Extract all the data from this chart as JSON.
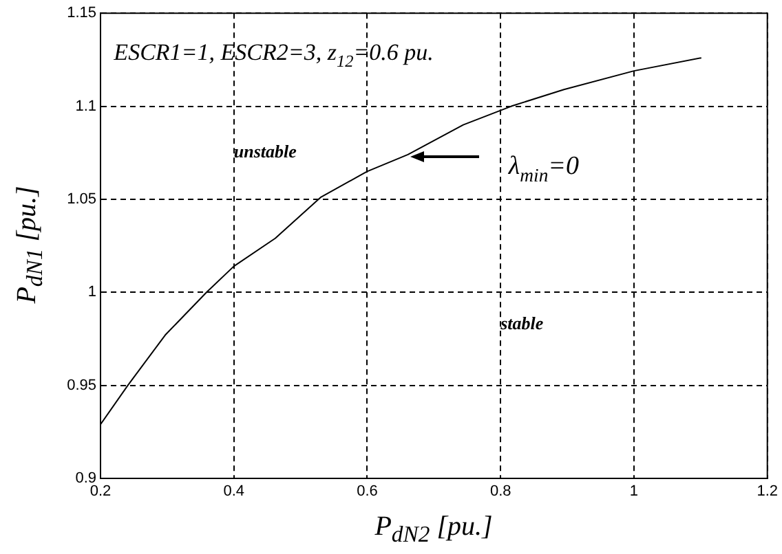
{
  "chart_data": {
    "type": "line",
    "xlabel": "P$_{dN2}$ [pu.]",
    "ylabel": "P$_{dN1}$ [pu.]",
    "x": [
      0.2,
      0.241,
      0.297,
      0.359,
      0.4,
      0.462,
      0.53,
      0.6,
      0.661,
      0.744,
      0.816,
      0.895,
      1.0,
      1.101
    ],
    "series": [
      {
        "color": "#000000",
        "values": [
          0.929,
          0.95,
          0.977,
          1.0,
          1.014,
          1.029,
          1.051,
          1.065,
          1.074,
          1.09,
          1.1,
          1.109,
          1.119,
          1.126
        ]
      }
    ],
    "xlim": [
      0.2,
      1.2
    ],
    "xticks": [
      0.2,
      0.4,
      0.6,
      0.8,
      1,
      1.2
    ],
    "ylim": [
      0.9,
      1.15
    ],
    "yticks": [
      0.9,
      0.95,
      1,
      1.05,
      1.1,
      1.15
    ],
    "grid": true,
    "line_style": "solid",
    "marker": "none",
    "legend": false,
    "annotations": [
      "ESCR1=1, ESCR2=3, z$_{12}$=0.6 pu.",
      "unstable",
      "stable",
      "λ$_{min}$=0"
    ]
  }
}
